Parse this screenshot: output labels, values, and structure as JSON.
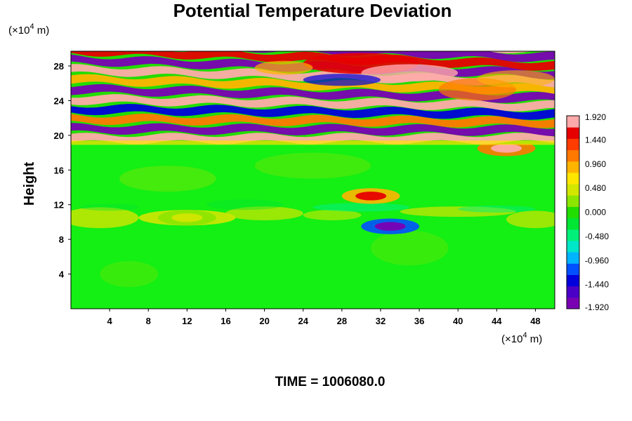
{
  "chart_data": {
    "type": "heatmap",
    "title": "Potential Temperature Deviation",
    "ylabel": "Height",
    "xlabel": "",
    "x_unit_prefix": "(×10",
    "x_unit_exp": "4",
    "x_unit_suffix": " m)",
    "y_unit_prefix": "(×10",
    "y_unit_exp": "4",
    "y_unit_suffix": " m)",
    "x_ticks": [
      "4",
      "8",
      "12",
      "16",
      "20",
      "24",
      "28",
      "32",
      "36",
      "40",
      "44",
      "48"
    ],
    "x_tick_values": [
      4,
      8,
      12,
      16,
      20,
      24,
      28,
      32,
      36,
      40,
      44,
      48
    ],
    "y_ticks": [
      "4",
      "8",
      "12",
      "16",
      "20",
      "24",
      "28"
    ],
    "y_tick_values": [
      4,
      8,
      12,
      16,
      20,
      24,
      28
    ],
    "xlim": [
      0,
      50
    ],
    "ylim": [
      0,
      29.7
    ],
    "colorbar": {
      "labels": [
        "1.920",
        "1.440",
        "0.960",
        "0.480",
        "0.000",
        "-0.480",
        "-0.960",
        "-1.440",
        "-1.920"
      ],
      "min": -1.92,
      "max": 1.92,
      "colors": [
        "#7a00b4",
        "#4b00c8",
        "#0000dc",
        "#0050ff",
        "#00b4ff",
        "#00e6c8",
        "#00f07a",
        "#00e632",
        "#22dd00",
        "#8ce600",
        "#d2e600",
        "#ffe600",
        "#ffb400",
        "#ff7800",
        "#ff3c00",
        "#e60000",
        "#ffaaaa"
      ]
    },
    "time_label": "TIME = 1006080.0",
    "field_description": {
      "lower_region": "near-zero deviation (green) from 0 to about 19",
      "upper_region": "strong alternating positive/negative bands from about 19 to 30",
      "features": [
        {
          "x": 31,
          "y": 13,
          "value": 1.6
        },
        {
          "x": 45,
          "y": 18.5,
          "value": 1.7
        },
        {
          "x": 33,
          "y": 9.5,
          "value": -1.7
        },
        {
          "x": 12,
          "y": 10.5,
          "value": 0.5
        }
      ]
    }
  }
}
